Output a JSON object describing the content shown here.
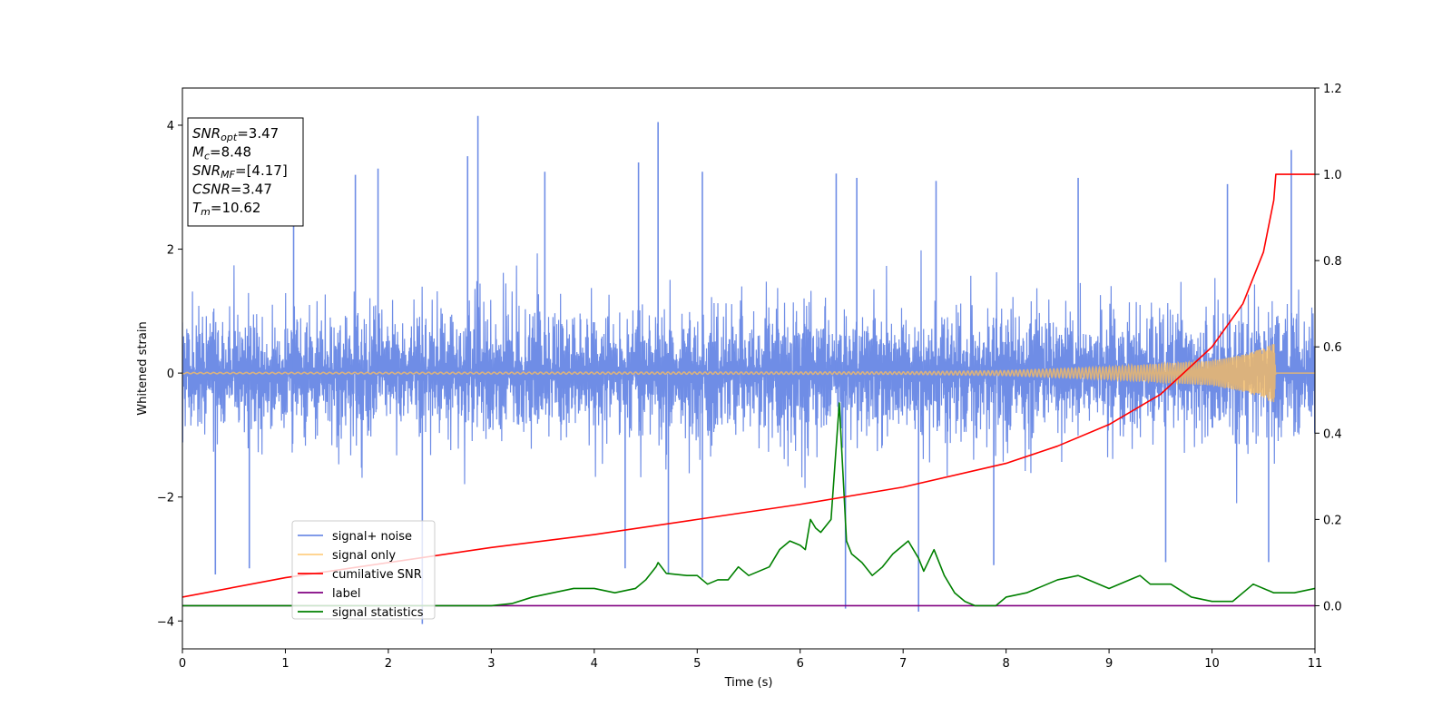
{
  "chart_data": {
    "type": "line",
    "title": "",
    "xlabel": "Time (s)",
    "ylabel": "Whitened strain",
    "y2label": "",
    "xlim": [
      0,
      11
    ],
    "ylim": [
      -4.45,
      4.6
    ],
    "y2lim": [
      -0.1,
      1.2
    ],
    "xticks": [
      0,
      1,
      2,
      3,
      4,
      5,
      6,
      7,
      8,
      9,
      10,
      11
    ],
    "yticks": [
      -4,
      -2,
      0,
      2,
      4
    ],
    "y2ticks": [
      "0.0",
      "0.2",
      "0.4",
      "0.6",
      "0.8",
      "1.0",
      "1.2"
    ],
    "grid": false,
    "legend_position": "lower-left",
    "colors": {
      "signal_noise": "#6f8de6",
      "signal_only": "#ffbf5a",
      "cumulative_snr": "#ff0000",
      "label": "#800080",
      "signal_statistics": "#008000"
    },
    "stats": [
      {
        "name": "SNR",
        "sub": "opt",
        "value": "=3.47"
      },
      {
        "name": "M",
        "sub": "c",
        "value": "=8.48"
      },
      {
        "name": "SNR",
        "sub": "MF",
        "value": "=[4.17]"
      },
      {
        "name": "CSNR",
        "sub": "",
        "value": "=3.47"
      },
      {
        "name": "T",
        "sub": "m",
        "value": "=10.62"
      }
    ],
    "series": [
      {
        "name": "signal+ noise",
        "axis": "left",
        "style": "noise",
        "envelope": {
          "x": [
            0,
            1,
            2,
            3,
            4,
            5,
            6,
            7,
            8,
            9,
            10,
            11
          ],
          "upper": [
            2.2,
            2.1,
            2.3,
            2.1,
            2.2,
            2.2,
            2.3,
            2.2,
            2.2,
            2.2,
            2.2,
            2.2
          ],
          "lower": [
            -2.2,
            -2.1,
            -2.2,
            -2.2,
            -2.3,
            -2.2,
            -2.3,
            -2.3,
            -2.2,
            -2.2,
            -2.2,
            -2.2
          ]
        },
        "spikes": [
          {
            "x": 0.32,
            "y": -3.25
          },
          {
            "x": 0.65,
            "y": -3.15
          },
          {
            "x": 1.08,
            "y": 3.2
          },
          {
            "x": 1.68,
            "y": 3.2
          },
          {
            "x": 1.9,
            "y": 3.3
          },
          {
            "x": 2.33,
            "y": -4.05
          },
          {
            "x": 2.77,
            "y": 3.5
          },
          {
            "x": 2.87,
            "y": 4.15
          },
          {
            "x": 3.52,
            "y": 3.25
          },
          {
            "x": 4.3,
            "y": -3.15
          },
          {
            "x": 4.43,
            "y": 3.4
          },
          {
            "x": 4.62,
            "y": 4.05
          },
          {
            "x": 4.72,
            "y": -3.25
          },
          {
            "x": 5.05,
            "y": -3.3
          },
          {
            "x": 5.05,
            "y": 3.25
          },
          {
            "x": 6.35,
            "y": 3.22
          },
          {
            "x": 6.44,
            "y": -3.8
          },
          {
            "x": 6.55,
            "y": 3.15
          },
          {
            "x": 7.15,
            "y": -3.85
          },
          {
            "x": 7.32,
            "y": 3.1
          },
          {
            "x": 7.88,
            "y": -3.1
          },
          {
            "x": 8.7,
            "y": 3.15
          },
          {
            "x": 9.55,
            "y": -3.05
          },
          {
            "x": 10.15,
            "y": 3.05
          },
          {
            "x": 10.55,
            "y": -3.05
          },
          {
            "x": 10.77,
            "y": 3.6
          }
        ]
      },
      {
        "name": "signal only",
        "axis": "left",
        "style": "chirp",
        "envelope": {
          "x": [
            0,
            7,
            8,
            9,
            9.5,
            10,
            10.3,
            10.5,
            10.6,
            10.62,
            11
          ],
          "amp": [
            0.01,
            0.02,
            0.04,
            0.1,
            0.15,
            0.2,
            0.3,
            0.4,
            0.5,
            0.0,
            0.0
          ]
        }
      },
      {
        "name": "cumilative SNR",
        "axis": "right",
        "x": [
          0,
          1,
          2,
          3,
          4,
          5,
          6,
          7,
          8,
          8.5,
          9,
          9.5,
          10,
          10.3,
          10.5,
          10.6,
          10.62,
          11
        ],
        "y": [
          0.02,
          0.065,
          0.1,
          0.135,
          0.165,
          0.2,
          0.235,
          0.275,
          0.33,
          0.37,
          0.42,
          0.49,
          0.6,
          0.7,
          0.82,
          0.94,
          1.0,
          1.0
        ]
      },
      {
        "name": "label",
        "axis": "right",
        "x": [
          0,
          11
        ],
        "y": [
          0.0,
          0.0
        ]
      },
      {
        "name": "signal statistics",
        "axis": "right",
        "x": [
          0,
          0.3,
          0.6,
          1.0,
          1.5,
          2.0,
          2.3,
          2.8,
          3.0,
          3.2,
          3.4,
          3.6,
          3.8,
          4.0,
          4.1,
          4.2,
          4.4,
          4.5,
          4.6,
          4.62,
          4.7,
          4.9,
          5.0,
          5.1,
          5.2,
          5.3,
          5.4,
          5.5,
          5.6,
          5.7,
          5.8,
          5.9,
          6.0,
          6.05,
          6.1,
          6.15,
          6.2,
          6.3,
          6.38,
          6.45,
          6.5,
          6.6,
          6.7,
          6.8,
          6.9,
          7.0,
          7.05,
          7.1,
          7.15,
          7.2,
          7.3,
          7.4,
          7.5,
          7.6,
          7.7,
          7.9,
          8.0,
          8.2,
          8.5,
          8.7,
          9.0,
          9.3,
          9.4,
          9.6,
          9.8,
          10.0,
          10.2,
          10.4,
          10.6,
          10.8,
          11.0
        ],
        "y": [
          0.0,
          0.0,
          0.0,
          0.0,
          0.0,
          0.0,
          0.0,
          0.0,
          0.0,
          0.005,
          0.02,
          0.03,
          0.04,
          0.04,
          0.035,
          0.03,
          0.04,
          0.06,
          0.09,
          0.1,
          0.075,
          0.07,
          0.07,
          0.05,
          0.06,
          0.06,
          0.09,
          0.07,
          0.08,
          0.09,
          0.13,
          0.15,
          0.14,
          0.13,
          0.2,
          0.18,
          0.17,
          0.2,
          0.47,
          0.15,
          0.12,
          0.1,
          0.07,
          0.09,
          0.12,
          0.14,
          0.15,
          0.13,
          0.11,
          0.08,
          0.13,
          0.07,
          0.03,
          0.01,
          0.0,
          0.0,
          0.02,
          0.03,
          0.06,
          0.07,
          0.04,
          0.07,
          0.05,
          0.05,
          0.02,
          0.01,
          0.01,
          0.05,
          0.03,
          0.03,
          0.04
        ]
      }
    ]
  }
}
